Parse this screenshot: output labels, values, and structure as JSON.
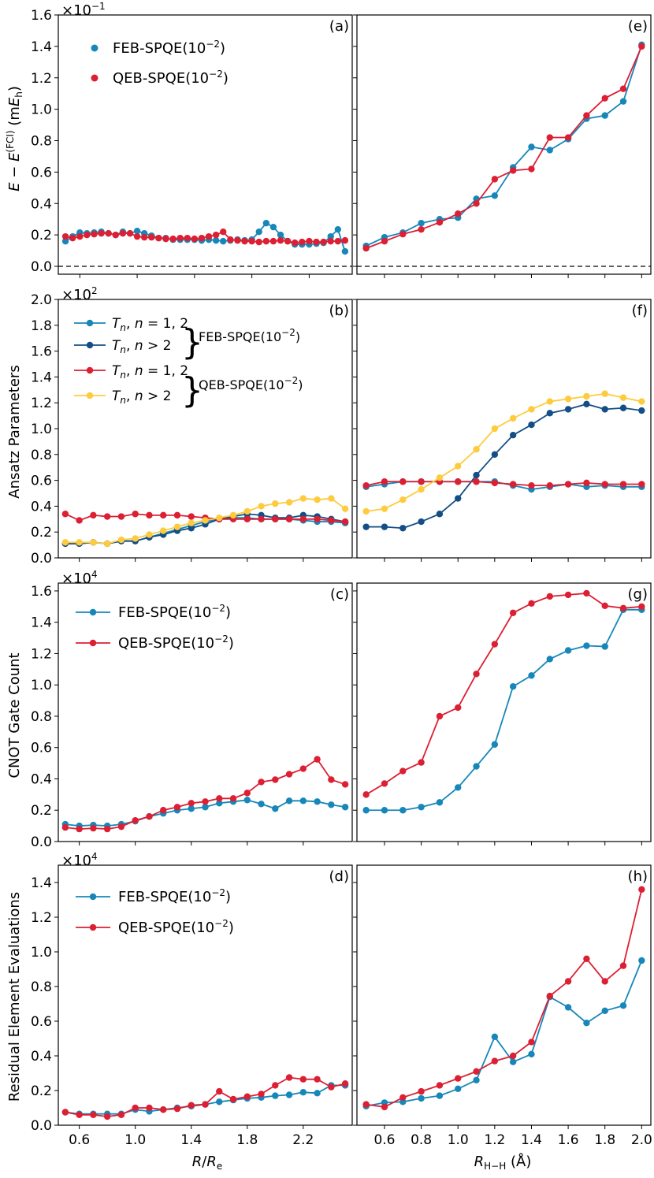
{
  "colors": {
    "feb": "#1787b9",
    "qeb": "#dc1f33",
    "feb_dark": "#144e86",
    "qeb_yellow": "#fecb3e"
  },
  "strings": {
    "ylabel_a": "E − E(FCI) (mEh)",
    "ylabel_b": "Ansatz Parameters",
    "ylabel_c": "CNOT Gate Count",
    "ylabel_d": "Residual Element Evaluations",
    "xlabel_left": "R/Re",
    "xlabel_right": "RH−H (Å)",
    "mult_a": "×10−1",
    "mult_b": "×102",
    "mult_c": "×104",
    "mult_d": "×104",
    "feb_label": "FEB-SPQE(10−2)",
    "qeb_label": "QEB-SPQE(10−2)",
    "tn12": "Tn, n = 1, 2",
    "tn2": "Tn, n > 2",
    "brace_feb": "FEB-SPQE(10−2)",
    "brace_qeb": "QEB-SPQE(10−2)"
  },
  "chart_data": [
    {
      "id": "a",
      "panel_label": "(a)",
      "type": "line",
      "x": [
        0.5,
        0.55,
        0.6,
        0.65,
        0.7,
        0.75,
        0.8,
        0.85,
        0.9,
        0.95,
        1.0,
        1.05,
        1.1,
        1.15,
        1.2,
        1.25,
        1.3,
        1.35,
        1.4,
        1.45,
        1.5,
        1.55,
        1.6,
        1.65,
        1.7,
        1.75,
        1.8,
        1.85,
        1.9,
        1.95,
        2.0,
        2.05,
        2.1,
        2.15,
        2.2,
        2.25,
        2.3,
        2.35,
        2.4,
        2.45
      ],
      "xlim": [
        0.45,
        2.5
      ],
      "ylim": [
        -0.05,
        1.6
      ],
      "yticks": [
        0.0,
        0.2,
        0.4,
        0.6,
        0.8,
        1.0,
        1.2,
        1.4,
        1.6
      ],
      "xticks": [
        0.6,
        1.0,
        1.4,
        1.8,
        2.2
      ],
      "hline": 0,
      "series": [
        {
          "name": "FEB-SPQE(10−2)",
          "color": "#1787b9",
          "y": [
            0.16,
            0.19,
            0.215,
            0.21,
            0.215,
            0.22,
            0.21,
            0.2,
            0.22,
            0.21,
            0.225,
            0.21,
            0.195,
            0.18,
            0.18,
            0.17,
            0.17,
            0.17,
            0.17,
            0.165,
            0.17,
            0.165,
            0.16,
            0.165,
            0.17,
            0.165,
            0.17,
            0.22,
            0.275,
            0.25,
            0.2,
            0.16,
            0.14,
            0.14,
            0.14,
            0.145,
            0.15,
            0.19,
            0.235,
            0.095
          ]
        },
        {
          "name": "QEB-SPQE(10−2)",
          "color": "#dc1f33",
          "y": [
            0.19,
            0.18,
            0.19,
            0.2,
            0.205,
            0.21,
            0.21,
            0.2,
            0.21,
            0.21,
            0.19,
            0.185,
            0.185,
            0.18,
            0.175,
            0.175,
            0.18,
            0.18,
            0.175,
            0.18,
            0.19,
            0.2,
            0.22,
            0.17,
            0.165,
            0.16,
            0.16,
            0.155,
            0.16,
            0.16,
            0.165,
            0.16,
            0.15,
            0.155,
            0.16,
            0.155,
            0.155,
            0.16,
            0.16,
            0.165
          ]
        }
      ]
    },
    {
      "id": "e",
      "panel_label": "(e)",
      "type": "line",
      "x": [
        0.5,
        0.6,
        0.7,
        0.8,
        0.9,
        1.0,
        1.1,
        1.2,
        1.3,
        1.4,
        1.5,
        1.6,
        1.7,
        1.8,
        1.9,
        2.0
      ],
      "xlim": [
        0.45,
        2.05
      ],
      "ylim": [
        -0.05,
        1.6
      ],
      "xticks": [
        0.6,
        0.8,
        1.0,
        1.2,
        1.4,
        1.6,
        1.8,
        2.0
      ],
      "hline": 0,
      "series": [
        {
          "name": "FEB-SPQE(10−2)",
          "color": "#1787b9",
          "y": [
            0.13,
            0.185,
            0.215,
            0.275,
            0.3,
            0.31,
            0.43,
            0.45,
            0.63,
            0.76,
            0.74,
            0.81,
            0.94,
            0.96,
            1.05,
            1.41
          ]
        },
        {
          "name": "QEB-SPQE(10−2)",
          "color": "#dc1f33",
          "y": [
            0.115,
            0.16,
            0.205,
            0.235,
            0.28,
            0.335,
            0.4,
            0.555,
            0.61,
            0.62,
            0.82,
            0.82,
            0.96,
            1.07,
            1.13,
            1.4
          ]
        }
      ]
    },
    {
      "id": "b",
      "panel_label": "(b)",
      "type": "line",
      "x": [
        0.5,
        0.6,
        0.7,
        0.8,
        0.9,
        1.0,
        1.1,
        1.2,
        1.3,
        1.4,
        1.5,
        1.6,
        1.7,
        1.8,
        1.9,
        2.0,
        2.1,
        2.2,
        2.3,
        2.4,
        2.5
      ],
      "xlim": [
        0.45,
        2.55
      ],
      "ylim": [
        0,
        2.0
      ],
      "yticks": [
        0.0,
        0.2,
        0.4,
        0.6,
        0.8,
        1.0,
        1.2,
        1.4,
        1.6,
        1.8,
        2.0
      ],
      "xticks": [
        0.6,
        1.0,
        1.4,
        1.8,
        2.2
      ],
      "series": [
        {
          "name": "FEB Tn, n = 1, 2",
          "color": "#1787b9",
          "y": [
            0.11,
            0.11,
            0.12,
            0.11,
            0.13,
            0.13,
            0.16,
            0.19,
            0.22,
            0.25,
            0.28,
            0.3,
            0.31,
            0.31,
            0.3,
            0.3,
            0.3,
            0.29,
            0.28,
            0.28,
            0.27
          ]
        },
        {
          "name": "FEB Tn, n > 2",
          "color": "#144e86",
          "y": [
            0.11,
            0.11,
            0.12,
            0.11,
            0.13,
            0.13,
            0.16,
            0.18,
            0.21,
            0.23,
            0.26,
            0.3,
            0.32,
            0.34,
            0.33,
            0.31,
            0.31,
            0.33,
            0.32,
            0.3,
            0.28
          ]
        },
        {
          "name": "QEB Tn, n = 1, 2",
          "color": "#dc1f33",
          "y": [
            0.34,
            0.29,
            0.33,
            0.32,
            0.32,
            0.34,
            0.33,
            0.33,
            0.33,
            0.32,
            0.31,
            0.3,
            0.3,
            0.3,
            0.3,
            0.3,
            0.3,
            0.3,
            0.3,
            0.29,
            0.28
          ]
        },
        {
          "name": "QEB Tn, n > 2",
          "color": "#fecb3e",
          "y": [
            0.12,
            0.12,
            0.12,
            0.11,
            0.14,
            0.15,
            0.18,
            0.21,
            0.24,
            0.27,
            0.29,
            0.31,
            0.33,
            0.36,
            0.4,
            0.42,
            0.43,
            0.46,
            0.45,
            0.46,
            0.38
          ]
        }
      ]
    },
    {
      "id": "f",
      "panel_label": "(f)",
      "type": "line",
      "x": [
        0.5,
        0.6,
        0.7,
        0.8,
        0.9,
        1.0,
        1.1,
        1.2,
        1.3,
        1.4,
        1.5,
        1.6,
        1.7,
        1.8,
        1.9,
        2.0
      ],
      "xlim": [
        0.45,
        2.05
      ],
      "ylim": [
        0,
        2.0
      ],
      "xticks": [
        0.6,
        0.8,
        1.0,
        1.2,
        1.4,
        1.6,
        1.8,
        2.0
      ],
      "series": [
        {
          "name": "FEB Tn, n = 1, 2",
          "color": "#1787b9",
          "y": [
            0.55,
            0.57,
            0.59,
            0.59,
            0.59,
            0.59,
            0.59,
            0.59,
            0.56,
            0.53,
            0.55,
            0.57,
            0.55,
            0.56,
            0.55,
            0.55
          ]
        },
        {
          "name": "FEB Tn, n > 2",
          "color": "#144e86",
          "y": [
            0.24,
            0.24,
            0.23,
            0.28,
            0.34,
            0.46,
            0.64,
            0.8,
            0.95,
            1.03,
            1.12,
            1.15,
            1.19,
            1.15,
            1.16,
            1.14
          ]
        },
        {
          "name": "QEB Tn, n = 1, 2",
          "color": "#dc1f33",
          "y": [
            0.56,
            0.59,
            0.59,
            0.59,
            0.59,
            0.59,
            0.59,
            0.58,
            0.57,
            0.56,
            0.56,
            0.57,
            0.58,
            0.57,
            0.57,
            0.57
          ]
        },
        {
          "name": "QEB Tn, n > 2",
          "color": "#fecb3e",
          "y": [
            0.36,
            0.38,
            0.45,
            0.53,
            0.62,
            0.71,
            0.84,
            1.0,
            1.08,
            1.15,
            1.21,
            1.23,
            1.25,
            1.27,
            1.24,
            1.21
          ]
        }
      ]
    },
    {
      "id": "c",
      "panel_label": "(c)",
      "type": "line",
      "x": [
        0.5,
        0.6,
        0.7,
        0.8,
        0.9,
        1.0,
        1.1,
        1.2,
        1.3,
        1.4,
        1.5,
        1.6,
        1.7,
        1.8,
        1.9,
        2.0,
        2.1,
        2.2,
        2.3,
        2.4,
        2.5
      ],
      "xlim": [
        0.45,
        2.55
      ],
      "ylim": [
        0,
        1.65
      ],
      "yticks": [
        0.0,
        0.2,
        0.4,
        0.6,
        0.8,
        1.0,
        1.2,
        1.4,
        1.6
      ],
      "xticks": [
        0.6,
        1.0,
        1.4,
        1.8,
        2.2
      ],
      "series": [
        {
          "name": "FEB-SPQE(10−2)",
          "color": "#1787b9",
          "y": [
            0.11,
            0.1,
            0.105,
            0.1,
            0.11,
            0.13,
            0.16,
            0.18,
            0.2,
            0.21,
            0.22,
            0.245,
            0.255,
            0.265,
            0.24,
            0.21,
            0.26,
            0.26,
            0.255,
            0.235,
            0.22
          ]
        },
        {
          "name": "QEB-SPQE(10−2)",
          "color": "#dc1f33",
          "y": [
            0.09,
            0.08,
            0.085,
            0.08,
            0.095,
            0.135,
            0.16,
            0.2,
            0.22,
            0.245,
            0.255,
            0.275,
            0.275,
            0.31,
            0.38,
            0.395,
            0.43,
            0.465,
            0.525,
            0.395,
            0.365
          ]
        }
      ]
    },
    {
      "id": "g",
      "panel_label": "(g)",
      "type": "line",
      "x": [
        0.5,
        0.6,
        0.7,
        0.8,
        0.9,
        1.0,
        1.1,
        1.2,
        1.3,
        1.4,
        1.5,
        1.6,
        1.7,
        1.8,
        1.9,
        2.0
      ],
      "xlim": [
        0.45,
        2.05
      ],
      "ylim": [
        0,
        1.65
      ],
      "xticks": [
        0.6,
        0.8,
        1.0,
        1.2,
        1.4,
        1.6,
        1.8,
        2.0
      ],
      "series": [
        {
          "name": "FEB-SPQE(10−2)",
          "color": "#1787b9",
          "y": [
            0.2,
            0.2,
            0.2,
            0.22,
            0.25,
            0.345,
            0.48,
            0.62,
            0.99,
            1.06,
            1.165,
            1.22,
            1.25,
            1.245,
            1.48,
            1.48
          ]
        },
        {
          "name": "QEB-SPQE(10−2)",
          "color": "#dc1f33",
          "y": [
            0.3,
            0.37,
            0.45,
            0.505,
            0.8,
            0.855,
            1.07,
            1.26,
            1.46,
            1.52,
            1.565,
            1.575,
            1.585,
            1.505,
            1.49,
            1.5
          ]
        }
      ]
    },
    {
      "id": "d",
      "panel_label": "(d)",
      "type": "line",
      "x": [
        0.5,
        0.6,
        0.7,
        0.8,
        0.9,
        1.0,
        1.1,
        1.2,
        1.3,
        1.4,
        1.5,
        1.6,
        1.7,
        1.8,
        1.9,
        2.0,
        2.1,
        2.2,
        2.3,
        2.4,
        2.5
      ],
      "xlim": [
        0.45,
        2.55
      ],
      "ylim": [
        0,
        1.5
      ],
      "yticks": [
        0.0,
        0.2,
        0.4,
        0.6,
        0.8,
        1.0,
        1.2,
        1.4
      ],
      "xticks": [
        0.6,
        1.0,
        1.4,
        1.8,
        2.2
      ],
      "series": [
        {
          "name": "FEB-SPQE(10−2)",
          "color": "#1787b9",
          "y": [
            0.075,
            0.065,
            0.065,
            0.065,
            0.065,
            0.09,
            0.08,
            0.09,
            0.1,
            0.11,
            0.12,
            0.135,
            0.145,
            0.155,
            0.16,
            0.17,
            0.175,
            0.19,
            0.185,
            0.23,
            0.23
          ]
        },
        {
          "name": "QEB-SPQE(10−2)",
          "color": "#dc1f33",
          "y": [
            0.075,
            0.06,
            0.06,
            0.05,
            0.06,
            0.1,
            0.1,
            0.09,
            0.095,
            0.115,
            0.12,
            0.195,
            0.15,
            0.165,
            0.18,
            0.23,
            0.275,
            0.265,
            0.265,
            0.22,
            0.24
          ]
        }
      ]
    },
    {
      "id": "h",
      "panel_label": "(h)",
      "type": "line",
      "x": [
        0.5,
        0.6,
        0.7,
        0.8,
        0.9,
        1.0,
        1.1,
        1.2,
        1.3,
        1.4,
        1.5,
        1.6,
        1.7,
        1.8,
        1.9,
        2.0
      ],
      "xlim": [
        0.45,
        2.05
      ],
      "ylim": [
        0,
        1.5
      ],
      "xticks": [
        0.6,
        0.8,
        1.0,
        1.2,
        1.4,
        1.6,
        1.8,
        2.0
      ],
      "xticklabels": [
        "0.6",
        "0.8",
        "1.0",
        "1.2",
        "1.4",
        "1.6",
        "1.8",
        "2.0"
      ],
      "series": [
        {
          "name": "FEB-SPQE(10−2)",
          "color": "#1787b9",
          "y": [
            0.11,
            0.13,
            0.135,
            0.155,
            0.17,
            0.21,
            0.26,
            0.51,
            0.365,
            0.41,
            0.74,
            0.68,
            0.59,
            0.66,
            0.69,
            0.95
          ]
        },
        {
          "name": "QEB-SPQE(10−2)",
          "color": "#dc1f33",
          "y": [
            0.12,
            0.105,
            0.16,
            0.195,
            0.23,
            0.27,
            0.31,
            0.37,
            0.4,
            0.48,
            0.745,
            0.83,
            0.96,
            0.83,
            0.92,
            1.36
          ]
        }
      ]
    }
  ]
}
